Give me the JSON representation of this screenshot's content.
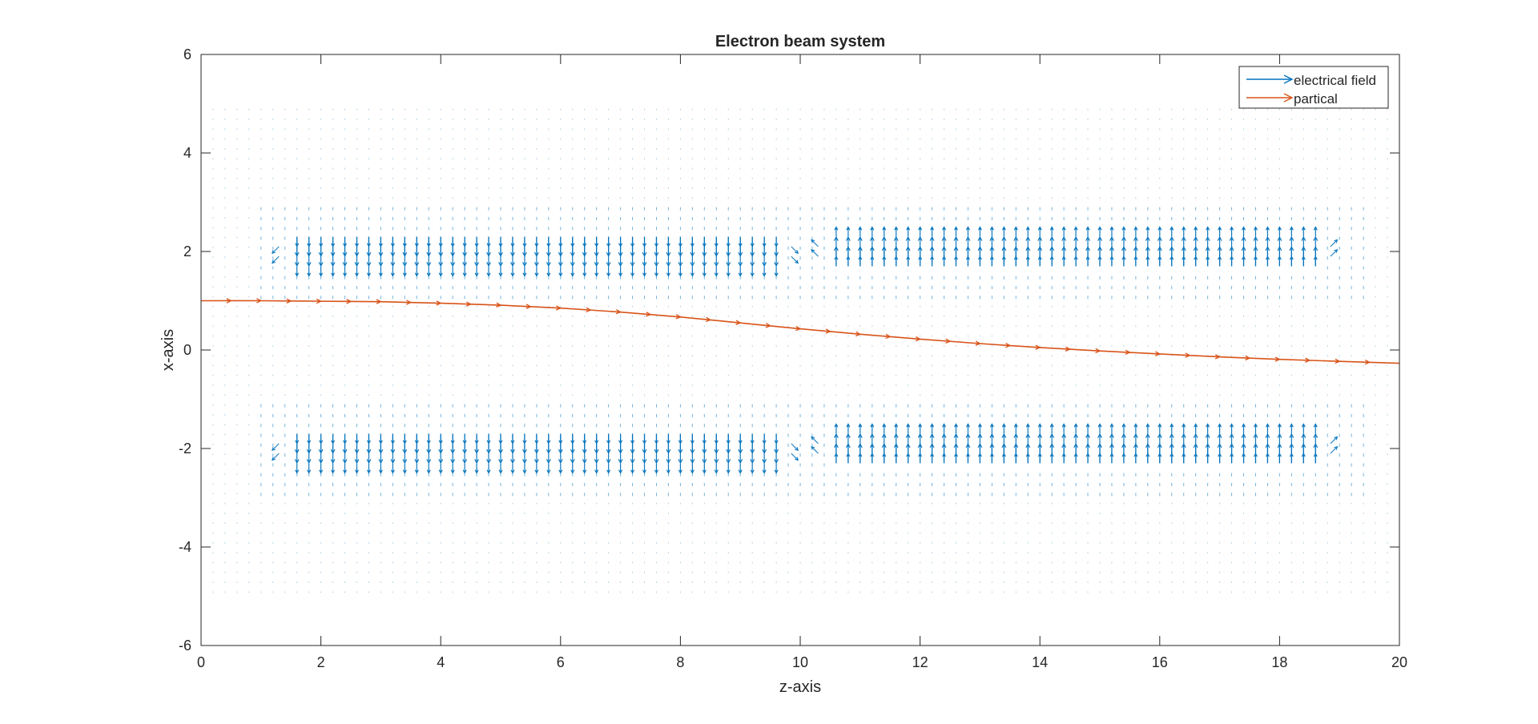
{
  "chart_data": {
    "type": "quiver",
    "title": "Electron beam system",
    "xlabel": "z-axis",
    "ylabel": "x-axis",
    "xlim": [
      0,
      20
    ],
    "ylim": [
      -6,
      6
    ],
    "xticks": [
      0,
      2,
      4,
      6,
      8,
      10,
      12,
      14,
      16,
      18,
      20
    ],
    "yticks": [
      -6,
      -4,
      -2,
      0,
      2,
      4,
      6
    ],
    "grid": false,
    "box": true,
    "legend": {
      "placement": "top-right",
      "entries": [
        {
          "label": "electrical field",
          "color": "#0072BD"
        },
        {
          "label": "partical",
          "color": "#D95319"
        }
      ]
    },
    "field": {
      "name": "electrical field",
      "color": "#0072BD",
      "z_range": [
        0.2,
        19.8
      ],
      "x_range": [
        -4.9,
        4.9
      ],
      "step": 0.2,
      "plates": [
        {
          "z_start": 1.6,
          "z_end": 9.6,
          "x": 2,
          "direction": "down"
        },
        {
          "z_start": 1.6,
          "z_end": 9.6,
          "x": -2,
          "direction": "down"
        },
        {
          "z_start": 10.6,
          "z_end": 18.6,
          "x": 2,
          "direction": "up"
        },
        {
          "z_start": 10.6,
          "z_end": 18.6,
          "x": -2,
          "direction": "up"
        }
      ]
    },
    "series": [
      {
        "name": "partical",
        "color": "#D95319",
        "z": [
          0,
          1,
          2,
          3,
          4,
          5,
          6,
          7,
          8,
          9,
          10,
          11,
          12,
          13,
          14,
          15,
          16,
          17,
          18,
          19,
          20
        ],
        "x": [
          1.0,
          1.0,
          0.99,
          0.98,
          0.95,
          0.91,
          0.85,
          0.77,
          0.67,
          0.55,
          0.43,
          0.32,
          0.22,
          0.13,
          0.05,
          -0.02,
          -0.08,
          -0.14,
          -0.19,
          -0.23,
          -0.27
        ]
      }
    ]
  }
}
